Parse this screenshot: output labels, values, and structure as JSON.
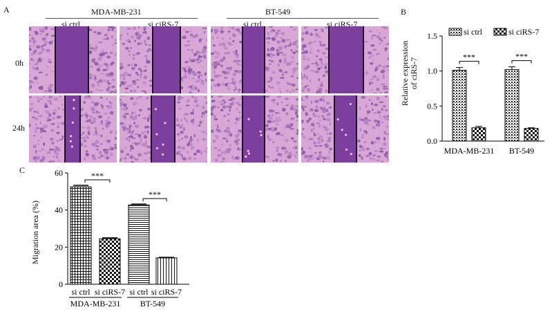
{
  "panel_a": {
    "letter": "A",
    "groups": [
      "MDA-MB-231",
      "BT-549"
    ],
    "columns": [
      "si ctrl",
      "si ciRS-7",
      "si ctrl",
      "si ciRS-7"
    ],
    "rows": [
      "0h",
      "24h"
    ]
  },
  "panel_b": {
    "letter": "B",
    "ylabel_line1": "Relative expression",
    "ylabel_line2": "of ciRS-7",
    "legend": [
      "si ctrl",
      "si ciRS-7"
    ],
    "significance": "***"
  },
  "panel_c": {
    "letter": "C",
    "ylabel": "Migration area (%)",
    "significance": "***"
  },
  "colors": {
    "tissue_light": "#d8a7d6",
    "tissue_dark": "#8d5ea8",
    "scratch": "#7d3f9e",
    "bar_outline": "#000000"
  },
  "chart_data": [
    {
      "type": "bar",
      "panel": "B",
      "categories": [
        "MDA-MB-231",
        "BT-549"
      ],
      "series": [
        {
          "name": "si ctrl",
          "values": [
            1.01,
            1.02
          ],
          "errors": [
            0.04,
            0.04
          ]
        },
        {
          "name": "si ciRS-7",
          "values": [
            0.19,
            0.18
          ],
          "errors": [
            0.02,
            0.01
          ]
        }
      ],
      "ylabel": "Relative expression of ciRS-7",
      "ylim": [
        0,
        1.5
      ],
      "yticks": [
        "0.0",
        "0.5",
        "1.0",
        "1.5"
      ],
      "legend_position": "top",
      "annotations": [
        "***",
        "***"
      ]
    },
    {
      "type": "bar",
      "panel": "C",
      "categories": [
        "si ctrl",
        "si ciRS-7",
        "si ctrl",
        "si ciRS-7"
      ],
      "groups": [
        "MDA-MB-231",
        "BT-549"
      ],
      "values": [
        52.5,
        24.5,
        42.8,
        14.2
      ],
      "errors": [
        0.8,
        0.5,
        0.4,
        0.3
      ],
      "ylabel": "Migration area (%)",
      "ylim": [
        0,
        60
      ],
      "yticks": [
        "0",
        "20",
        "40",
        "60"
      ],
      "annotations": [
        "***",
        "***"
      ]
    }
  ]
}
